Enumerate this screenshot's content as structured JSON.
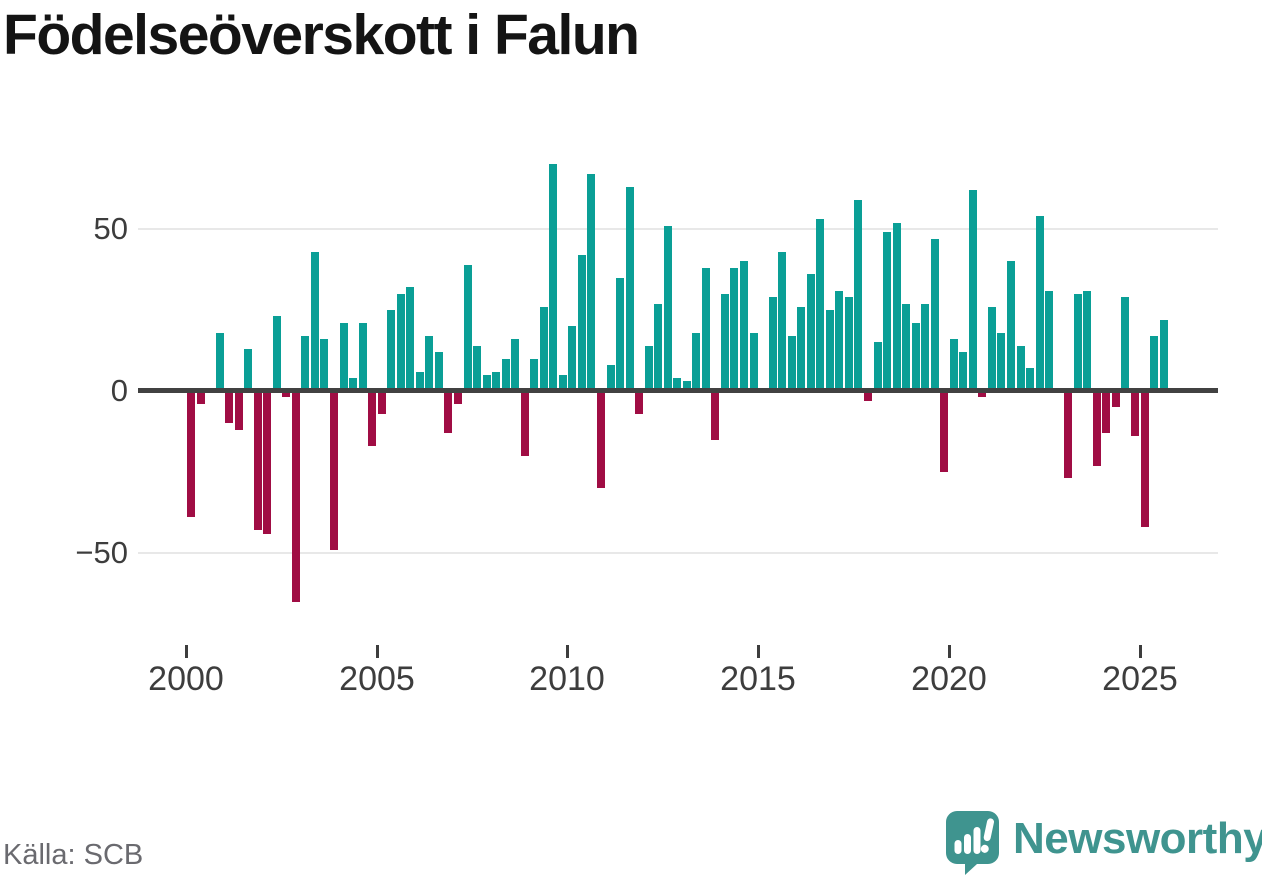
{
  "title": "Födelseöverskott i Falun",
  "source": "Källa: SCB",
  "brand": {
    "name": "Newsworthy",
    "icon": "newsworthy-speech-bubble-chart-icon",
    "color": "#3f948f",
    "icon_color": "#3a9b95"
  },
  "colors": {
    "positive": "#0a9f96",
    "negative": "#a00d44",
    "axis": "#414141",
    "grid": "#e8e8e8",
    "tick_text": "#3d3d3d",
    "title_text": "#141414",
    "source_text": "#6a6a6f"
  },
  "chart_data": {
    "type": "bar",
    "title": "Födelseöverskott i Falun",
    "xlabel": "",
    "ylabel": "",
    "x_unit": "quarter",
    "grid": "horizontal",
    "legend": "none",
    "ylim": [
      -70,
      75
    ],
    "yticks": [
      50,
      0,
      -50
    ],
    "ytick_labels": [
      "50",
      "0",
      "−50"
    ],
    "xtick_years": [
      2000,
      2005,
      2010,
      2015,
      2020,
      2025
    ],
    "xtick_labels": [
      "2000",
      "2005",
      "2010",
      "2015",
      "2020",
      "2025"
    ],
    "positive_color": "#0a9f96",
    "negative_color": "#a00d44",
    "series_by_year": [
      {
        "year": 2000,
        "values": [
          -39,
          -4,
          1,
          18
        ]
      },
      {
        "year": 2001,
        "values": [
          -10,
          -12,
          13,
          -43
        ]
      },
      {
        "year": 2002,
        "values": [
          -44,
          23,
          -2,
          -65
        ]
      },
      {
        "year": 2003,
        "values": [
          17,
          43,
          16,
          -49
        ]
      },
      {
        "year": 2004,
        "values": [
          21,
          4,
          21,
          -17
        ]
      },
      {
        "year": 2005,
        "values": [
          -7,
          25,
          30,
          32
        ]
      },
      {
        "year": 2006,
        "values": [
          6,
          17,
          12,
          -13
        ]
      },
      {
        "year": 2007,
        "values": [
          -4,
          39,
          14,
          5
        ]
      },
      {
        "year": 2008,
        "values": [
          6,
          10,
          16,
          -20
        ]
      },
      {
        "year": 2009,
        "values": [
          10,
          26,
          70,
          5
        ]
      },
      {
        "year": 2010,
        "values": [
          20,
          42,
          67,
          -30
        ]
      },
      {
        "year": 2011,
        "values": [
          8,
          35,
          63,
          -7
        ]
      },
      {
        "year": 2012,
        "values": [
          14,
          27,
          51,
          4
        ]
      },
      {
        "year": 2013,
        "values": [
          3,
          18,
          38,
          -15
        ]
      },
      {
        "year": 2014,
        "values": [
          30,
          38,
          40,
          18
        ]
      },
      {
        "year": 2015,
        "values": [
          0,
          29,
          43,
          17
        ]
      },
      {
        "year": 2016,
        "values": [
          26,
          36,
          53,
          25
        ]
      },
      {
        "year": 2017,
        "values": [
          31,
          29,
          59,
          -3
        ]
      },
      {
        "year": 2018,
        "values": [
          15,
          49,
          52,
          27
        ]
      },
      {
        "year": 2019,
        "values": [
          21,
          27,
          47,
          -25
        ]
      },
      {
        "year": 2020,
        "values": [
          16,
          12,
          62,
          -2
        ]
      },
      {
        "year": 2021,
        "values": [
          26,
          18,
          40,
          14
        ]
      },
      {
        "year": 2022,
        "values": [
          7,
          54,
          31,
          0
        ]
      },
      {
        "year": 2023,
        "values": [
          -27,
          30,
          31,
          -23
        ]
      },
      {
        "year": 2024,
        "values": [
          -13,
          -5,
          29,
          -14
        ]
      },
      {
        "year": 2025,
        "values": [
          -42,
          17,
          22
        ]
      }
    ]
  }
}
